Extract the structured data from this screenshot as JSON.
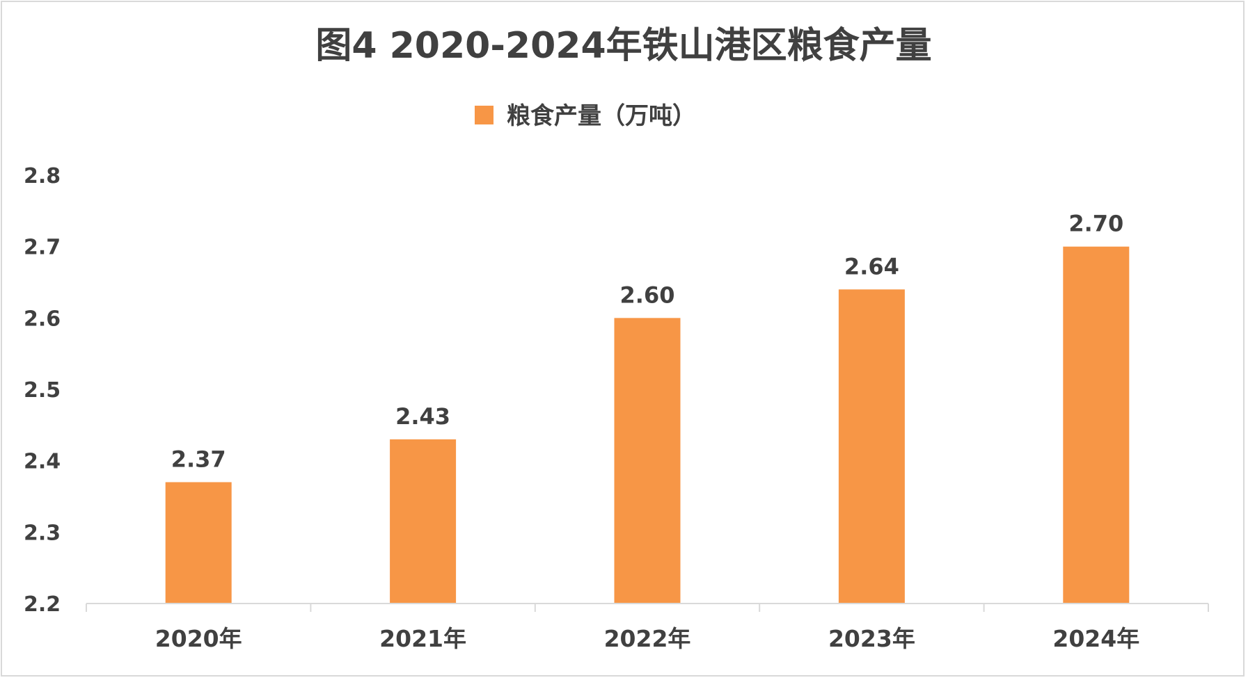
{
  "chart_data": {
    "type": "bar",
    "title": "图4 2020-2024年铁山港区粮食产量",
    "xlabel": "",
    "ylabel": "",
    "categories": [
      "2020年",
      "2021年",
      "2022年",
      "2023年",
      "2024年"
    ],
    "series": [
      {
        "name": "粮食产量（万吨）",
        "values": [
          2.37,
          2.43,
          2.6,
          2.64,
          2.7
        ],
        "color": "#f79646",
        "data_labels": [
          "2.37",
          "2.43",
          "2.60",
          "2.64",
          "2.70"
        ]
      }
    ],
    "ylim": [
      2.2,
      2.8
    ],
    "yticks": [
      "2.2",
      "2.3",
      "2.4",
      "2.5",
      "2.6",
      "2.7",
      "2.8"
    ],
    "grid": false,
    "legend_position": "top-center"
  }
}
